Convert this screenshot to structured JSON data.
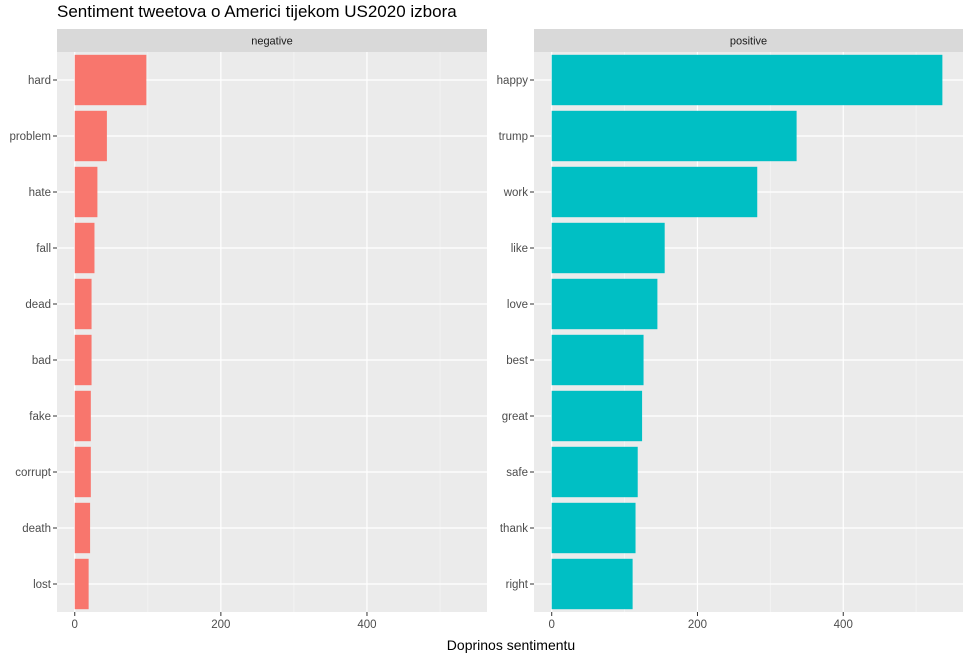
{
  "chart_data": {
    "type": "bar",
    "orientation": "horizontal",
    "title": "Sentiment tweetova o Americi tijekom US2020 izbora",
    "xlabel": "Doprinos sentimentu",
    "ylabel": "",
    "xlim": [
      0,
      540
    ],
    "x_ticks": [
      0,
      200,
      400
    ],
    "grid": true,
    "legend": "none",
    "panels": [
      {
        "name": "negative",
        "color": "#F8766D",
        "categories": [
          "hard",
          "problem",
          "hate",
          "fall",
          "dead",
          "bad",
          "fake",
          "corrupt",
          "death",
          "lost"
        ],
        "values": [
          98,
          44,
          31,
          27,
          23,
          23,
          22,
          22,
          21,
          19
        ]
      },
      {
        "name": "positive",
        "color": "#00BFC4",
        "categories": [
          "happy",
          "trump",
          "work",
          "like",
          "love",
          "best",
          "great",
          "safe",
          "thank",
          "right"
        ],
        "values": [
          536,
          336,
          282,
          155,
          145,
          126,
          124,
          118,
          115,
          111
        ]
      }
    ]
  }
}
